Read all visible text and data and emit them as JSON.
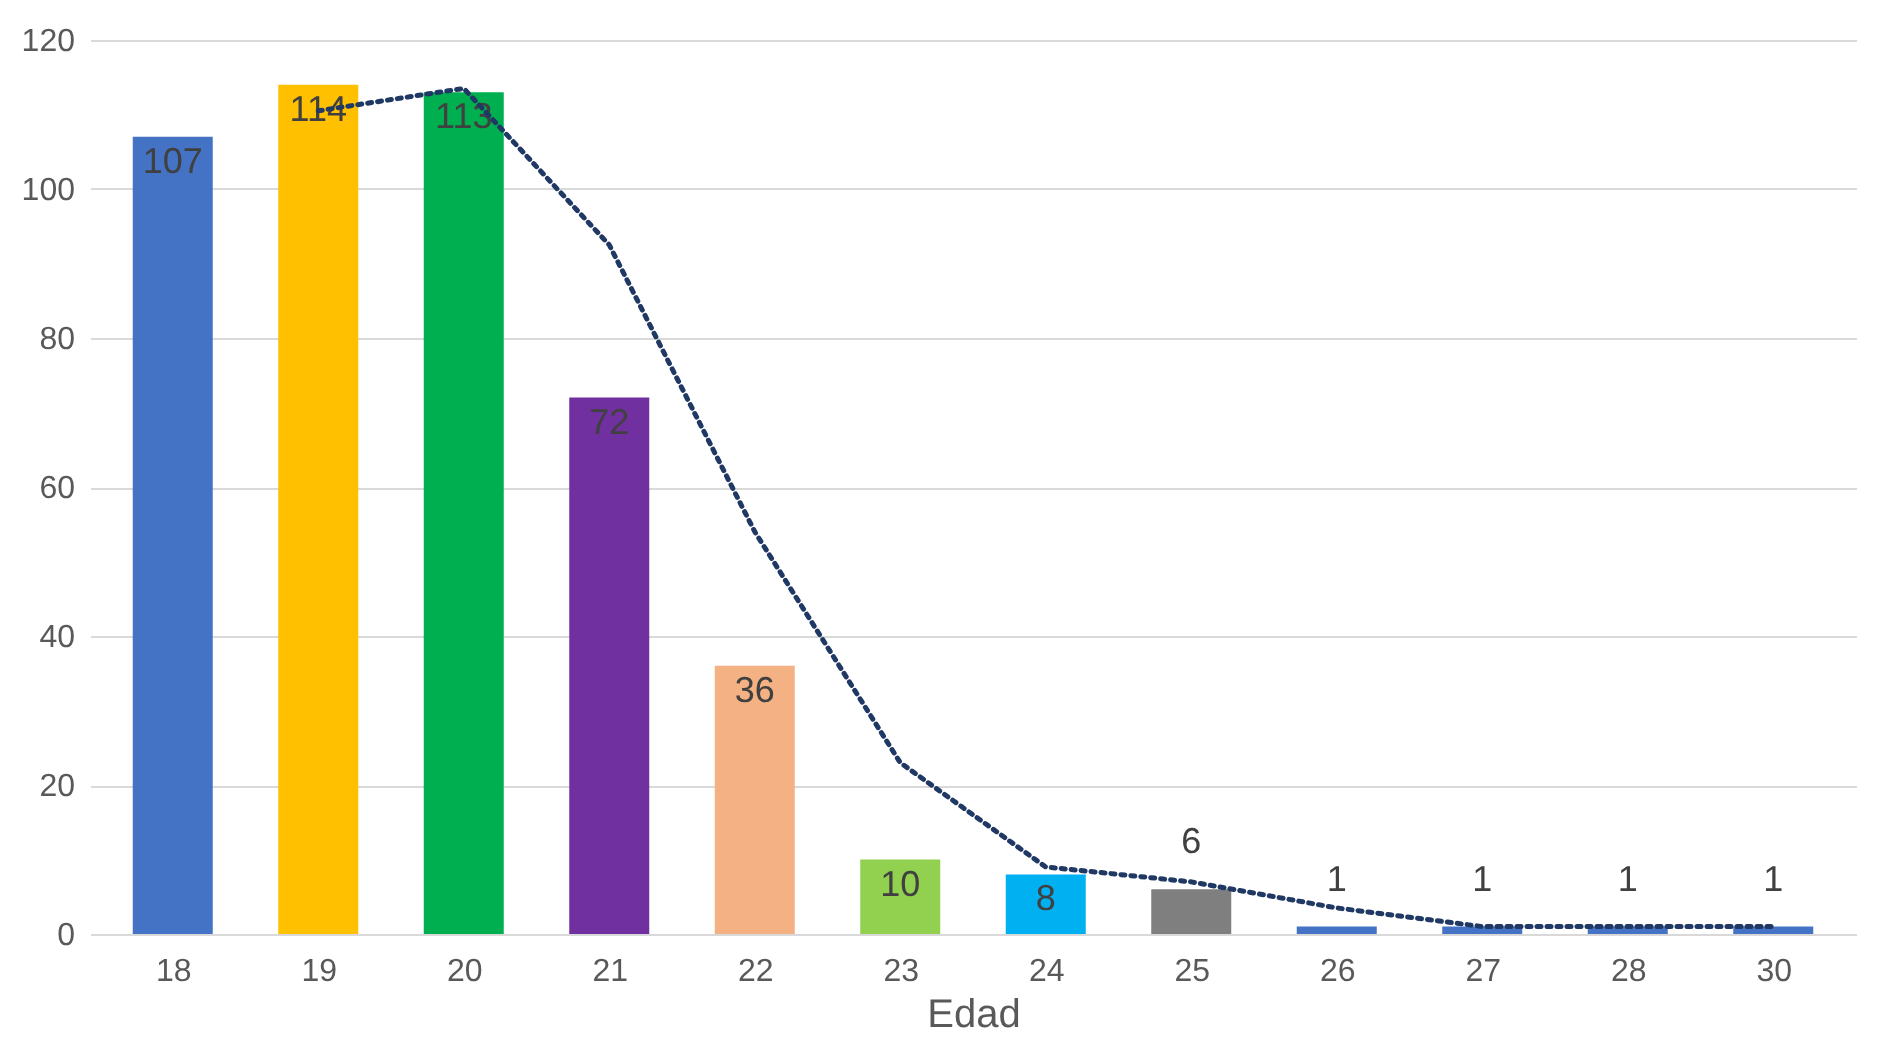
{
  "chart_data": {
    "type": "bar",
    "xlabel": "Edad",
    "categories": [
      "18",
      "19",
      "20",
      "21",
      "22",
      "23",
      "24",
      "25",
      "26",
      "27",
      "28",
      "30"
    ],
    "series": [
      {
        "colors": [
          "#4472c4",
          "#ffc000",
          "#00b050",
          "#7030a0",
          "#f4b183",
          "#92d050",
          "#00b0f0",
          "#7f7f7f",
          "#4472c4",
          "#4472c4",
          "#4472c4",
          "#4472c4"
        ],
        "values": [
          107,
          114,
          113,
          72,
          36,
          10,
          8,
          6,
          1,
          1,
          1,
          1
        ],
        "value_labels": [
          "107",
          "114",
          "113",
          "72",
          "36",
          "10",
          "8",
          "6",
          "1",
          "1",
          "1",
          "1"
        ]
      },
      {
        "type": "line",
        "color": "#203864",
        "line_style": "dotted",
        "marker": "none",
        "values": [
          null,
          110.5,
          113.5,
          92.5,
          54,
          23,
          9,
          7,
          3.5,
          1,
          1,
          1
        ]
      }
    ],
    "ylim": [
      0,
      120
    ],
    "yticks": [
      0,
      20,
      40,
      60,
      80,
      100,
      120
    ],
    "grid": "y"
  }
}
